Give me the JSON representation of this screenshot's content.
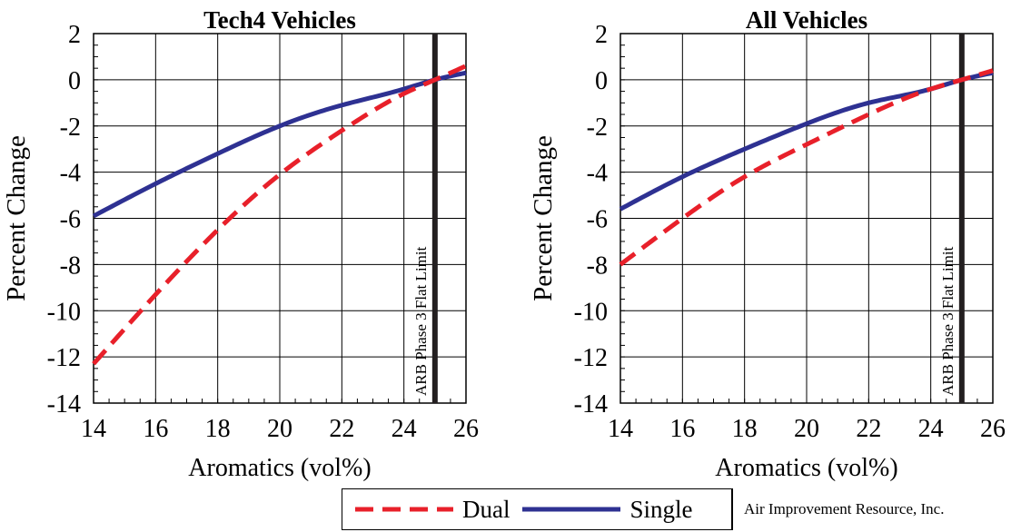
{
  "chart_data": [
    {
      "type": "line",
      "title": "Tech4 Vehicles",
      "xlabel": "Aromatics (vol%)",
      "ylabel": "Percent Change",
      "xlim": [
        14,
        26
      ],
      "ylim": [
        -14,
        2
      ],
      "x_ticks": [
        14,
        16,
        18,
        20,
        22,
        24,
        26
      ],
      "y_ticks": [
        2,
        0,
        -2,
        -4,
        -6,
        -8,
        -10,
        -12,
        -14
      ],
      "grid": true,
      "reference_line": {
        "x": 25,
        "label": "ARB Phase 3 Flat Limit"
      },
      "series": [
        {
          "name": "Dual",
          "color": "#e8202a",
          "style": "dashed",
          "x": [
            14,
            16,
            18,
            20,
            22,
            24,
            25,
            26
          ],
          "y": [
            -12.3,
            -9.3,
            -6.5,
            -4.1,
            -2.2,
            -0.6,
            0.0,
            0.6
          ]
        },
        {
          "name": "Single",
          "color": "#2e3192",
          "style": "solid",
          "x": [
            14,
            16,
            18,
            20,
            22,
            24,
            25,
            26
          ],
          "y": [
            -5.9,
            -4.5,
            -3.2,
            -2.0,
            -1.1,
            -0.4,
            0.0,
            0.3
          ]
        }
      ]
    },
    {
      "type": "line",
      "title": "All Vehicles",
      "xlabel": "Aromatics (vol%)",
      "ylabel": "Percent Change",
      "xlim": [
        14,
        26
      ],
      "ylim": [
        -14,
        2
      ],
      "x_ticks": [
        14,
        16,
        18,
        20,
        22,
        24,
        26
      ],
      "y_ticks": [
        2,
        0,
        -2,
        -4,
        -6,
        -8,
        -10,
        -12,
        -14
      ],
      "grid": true,
      "reference_line": {
        "x": 25,
        "label": "ARB Phase 3 Flat Limit"
      },
      "series": [
        {
          "name": "Dual",
          "color": "#e8202a",
          "style": "dashed",
          "x": [
            14,
            16,
            18,
            20,
            22,
            24,
            25,
            26
          ],
          "y": [
            -8.0,
            -6.0,
            -4.2,
            -2.8,
            -1.5,
            -0.4,
            0.0,
            0.4
          ]
        },
        {
          "name": "Single",
          "color": "#2e3192",
          "style": "solid",
          "x": [
            14,
            16,
            18,
            20,
            22,
            24,
            25,
            26
          ],
          "y": [
            -5.6,
            -4.2,
            -3.0,
            -1.9,
            -1.0,
            -0.4,
            0.0,
            0.3
          ]
        }
      ]
    }
  ],
  "legend": {
    "dual_label": "Dual",
    "single_label": "Single",
    "dual_color": "#e8202a",
    "single_color": "#2e3192"
  },
  "credit": "Air Improvement Resource, Inc."
}
